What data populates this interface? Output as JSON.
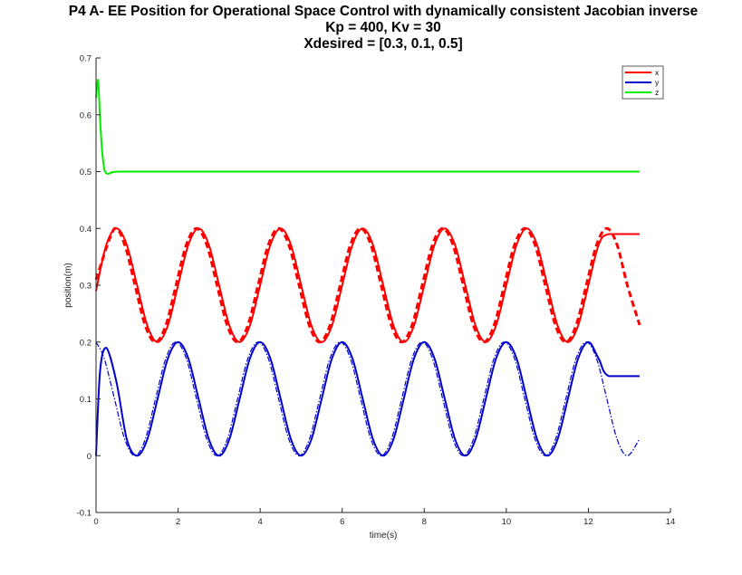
{
  "chart_data": {
    "type": "line",
    "title_lines": [
      "P4 A- EE Position for Operational Space Control with dynamically consistent Jacobian inverse",
      "Kp = 400, Kv = 30",
      "Xdesired = [0.3, 0.1, 0.5]"
    ],
    "xlabel": "time(s)",
    "ylabel": "position(m)",
    "xlim": [
      0,
      14
    ],
    "ylim": [
      -0.1,
      0.7
    ],
    "xticks": [
      0,
      2,
      4,
      6,
      8,
      10,
      12,
      14
    ],
    "xtick_labels": [
      "0",
      "2",
      "4",
      "6",
      "8",
      "10",
      "12",
      "14"
    ],
    "yticks": [
      -0.1,
      0,
      0.1,
      0.2,
      0.3,
      0.4,
      0.5,
      0.6,
      0.7
    ],
    "ytick_labels": [
      "-0.1",
      "0",
      "0.1",
      "0.2",
      "0.3",
      "0.4",
      "0.5",
      "0.6",
      "0.7"
    ],
    "grid": false,
    "legend_position": "top-right",
    "legend": [
      {
        "label": "x",
        "color": "#ff0000"
      },
      {
        "label": "y",
        "color": "#0000cc"
      },
      {
        "label": "z",
        "color": "#00ee00"
      }
    ],
    "series": [
      {
        "name": "x",
        "style": "solid",
        "color": "#ff0000",
        "x": [
          0,
          0.25,
          0.5,
          0.75,
          1.0,
          1.25,
          1.5,
          1.75,
          2.0,
          2.25,
          2.5,
          2.75,
          3.0,
          3.25,
          3.5,
          3.75,
          4.0,
          4.25,
          4.5,
          4.75,
          5.0,
          5.25,
          5.5,
          5.75,
          6.0,
          6.25,
          6.5,
          6.75,
          7.0,
          7.25,
          7.5,
          7.75,
          8.0,
          8.25,
          8.5,
          8.75,
          9.0,
          9.25,
          9.5,
          9.75,
          10.0,
          10.25,
          10.5,
          10.75,
          11.0,
          11.25,
          11.5,
          11.75,
          12.0,
          12.25,
          12.5,
          13.25
        ],
        "y": [
          0.29,
          0.371,
          0.4,
          0.371,
          0.3,
          0.229,
          0.2,
          0.229,
          0.3,
          0.371,
          0.4,
          0.371,
          0.3,
          0.229,
          0.2,
          0.229,
          0.3,
          0.371,
          0.4,
          0.371,
          0.3,
          0.229,
          0.2,
          0.229,
          0.3,
          0.371,
          0.4,
          0.371,
          0.3,
          0.229,
          0.2,
          0.229,
          0.3,
          0.371,
          0.4,
          0.371,
          0.3,
          0.229,
          0.2,
          0.229,
          0.3,
          0.371,
          0.4,
          0.371,
          0.3,
          0.229,
          0.2,
          0.229,
          0.3,
          0.371,
          0.39,
          0.39
        ]
      },
      {
        "name": "x desired",
        "style": "dashed",
        "color": "#ff0000",
        "x": [
          0,
          0.45,
          0.7,
          0.95,
          1.2,
          1.45,
          1.7,
          1.95,
          2.2,
          2.45,
          2.7,
          2.95,
          3.2,
          3.45,
          3.7,
          3.95,
          4.2,
          4.45,
          4.7,
          4.95,
          5.2,
          5.45,
          5.7,
          5.95,
          6.2,
          6.45,
          6.7,
          6.95,
          7.2,
          7.45,
          7.7,
          7.95,
          8.2,
          8.45,
          8.7,
          8.95,
          9.2,
          9.45,
          9.7,
          9.95,
          10.2,
          10.45,
          10.7,
          10.95,
          11.2,
          11.45,
          11.7,
          11.95,
          12.2,
          12.45,
          12.7,
          12.95,
          13.25
        ],
        "y": [
          0.31,
          0.4,
          0.371,
          0.3,
          0.229,
          0.2,
          0.229,
          0.3,
          0.371,
          0.4,
          0.371,
          0.3,
          0.229,
          0.2,
          0.229,
          0.3,
          0.371,
          0.4,
          0.371,
          0.3,
          0.229,
          0.2,
          0.229,
          0.3,
          0.371,
          0.4,
          0.371,
          0.3,
          0.229,
          0.2,
          0.229,
          0.3,
          0.371,
          0.4,
          0.371,
          0.3,
          0.229,
          0.2,
          0.229,
          0.3,
          0.371,
          0.4,
          0.371,
          0.3,
          0.229,
          0.2,
          0.229,
          0.3,
          0.371,
          0.4,
          0.371,
          0.3,
          0.23
        ]
      },
      {
        "name": "y",
        "style": "solid",
        "color": "#0000cc",
        "x": [
          0,
          0.1,
          0.25,
          0.5,
          0.75,
          1.0,
          1.25,
          1.5,
          1.75,
          2.0,
          2.25,
          2.5,
          2.75,
          3.0,
          3.25,
          3.5,
          3.75,
          4.0,
          4.25,
          4.5,
          4.75,
          5.0,
          5.25,
          5.5,
          5.75,
          6.0,
          6.25,
          6.5,
          6.75,
          7.0,
          7.25,
          7.5,
          7.75,
          8.0,
          8.25,
          8.5,
          8.75,
          9.0,
          9.25,
          9.5,
          9.75,
          10.0,
          10.25,
          10.5,
          10.75,
          11.0,
          11.25,
          11.5,
          11.75,
          12.0,
          12.25,
          12.5,
          13.25
        ],
        "y": [
          0.0,
          0.15,
          0.19,
          0.129,
          0.029,
          0.0,
          0.029,
          0.1,
          0.171,
          0.2,
          0.171,
          0.1,
          0.029,
          0.0,
          0.029,
          0.1,
          0.171,
          0.2,
          0.171,
          0.1,
          0.029,
          0.0,
          0.029,
          0.1,
          0.171,
          0.2,
          0.171,
          0.1,
          0.029,
          0.0,
          0.029,
          0.1,
          0.171,
          0.2,
          0.171,
          0.1,
          0.029,
          0.0,
          0.029,
          0.1,
          0.171,
          0.2,
          0.171,
          0.1,
          0.029,
          0.0,
          0.029,
          0.1,
          0.171,
          0.2,
          0.171,
          0.14,
          0.14
        ]
      },
      {
        "name": "y desired",
        "style": "dashdot",
        "color": "#0000cc",
        "x": [
          0,
          0.2,
          0.45,
          0.7,
          0.95,
          1.2,
          1.45,
          1.7,
          1.95,
          2.2,
          2.45,
          2.7,
          2.95,
          3.2,
          3.45,
          3.7,
          3.95,
          4.2,
          4.45,
          4.7,
          4.95,
          5.2,
          5.45,
          5.7,
          5.95,
          6.2,
          6.45,
          6.7,
          6.95,
          7.2,
          7.45,
          7.7,
          7.95,
          8.2,
          8.45,
          8.7,
          8.95,
          9.2,
          9.45,
          9.7,
          9.95,
          10.2,
          10.45,
          10.7,
          10.95,
          11.2,
          11.45,
          11.7,
          11.95,
          12.2,
          12.45,
          12.7,
          12.95,
          13.25
        ],
        "y": [
          0.2,
          0.171,
          0.1,
          0.029,
          0.0,
          0.029,
          0.1,
          0.171,
          0.2,
          0.171,
          0.1,
          0.029,
          0.0,
          0.029,
          0.1,
          0.171,
          0.2,
          0.171,
          0.1,
          0.029,
          0.0,
          0.029,
          0.1,
          0.171,
          0.2,
          0.171,
          0.1,
          0.029,
          0.0,
          0.029,
          0.1,
          0.171,
          0.2,
          0.171,
          0.1,
          0.029,
          0.0,
          0.029,
          0.1,
          0.171,
          0.2,
          0.171,
          0.1,
          0.029,
          0.0,
          0.029,
          0.1,
          0.171,
          0.2,
          0.171,
          0.1,
          0.029,
          0.0,
          0.03
        ]
      },
      {
        "name": "z",
        "style": "solid",
        "color": "#00ee00",
        "x": [
          0,
          0.05,
          0.1,
          0.15,
          0.2,
          0.25,
          0.3,
          0.4,
          0.6,
          1.0,
          2.0,
          4.0,
          6.0,
          8.0,
          10.0,
          12.0,
          13.25
        ],
        "y": [
          0.63,
          0.662,
          0.59,
          0.535,
          0.505,
          0.497,
          0.496,
          0.499,
          0.5,
          0.5,
          0.5,
          0.5,
          0.5,
          0.5,
          0.5,
          0.5,
          0.5
        ]
      }
    ]
  }
}
